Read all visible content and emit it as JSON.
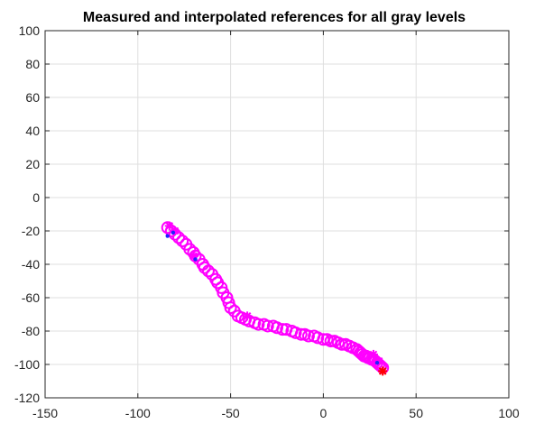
{
  "chart_data": {
    "type": "scatter",
    "title": "Measured and interpolated references for all gray levels",
    "xlabel": "",
    "ylabel": "",
    "xlim": [
      -150,
      100
    ],
    "ylim": [
      -120,
      100
    ],
    "xticks": [
      -150,
      -100,
      -50,
      0,
      50,
      100
    ],
    "yticks": [
      -120,
      -100,
      -80,
      -60,
      -40,
      -20,
      0,
      20,
      40,
      60,
      80,
      100
    ],
    "grid": true,
    "legend": "none",
    "colors": {
      "interpolated": "#ff00ff",
      "measured": "#ff00ff",
      "dark_marker": "#2020ff",
      "highlight": "#ff0000"
    },
    "series": [
      {
        "marker": "circle",
        "color": "#ff00ff",
        "x": [
          -84,
          -82,
          -80,
          -78,
          -76,
          -74,
          -72,
          -70,
          -69,
          -67,
          -65,
          -64,
          -62,
          -60,
          -58,
          -57,
          -55,
          -54,
          -52,
          -51,
          -50,
          -48,
          -46,
          -44,
          -42,
          -40,
          -37,
          -35,
          -32,
          -30,
          -27,
          -25,
          -22,
          -20,
          -17,
          -15,
          -12,
          -10,
          -8,
          -5,
          -3,
          0,
          2,
          4,
          6,
          8,
          10,
          12,
          14,
          16,
          18,
          19,
          20,
          21,
          22,
          23,
          24,
          25,
          26,
          27,
          28,
          29,
          30,
          31,
          32
        ],
        "y": [
          -18,
          -20,
          -22,
          -24,
          -26,
          -28,
          -31,
          -33,
          -35,
          -37,
          -40,
          -42,
          -44,
          -46,
          -49,
          -51,
          -54,
          -57,
          -60,
          -63,
          -66,
          -68,
          -71,
          -72,
          -73,
          -74,
          -75,
          -76,
          -76,
          -77,
          -77,
          -78,
          -79,
          -79,
          -80,
          -81,
          -82,
          -82,
          -83,
          -83,
          -84,
          -85,
          -85,
          -86,
          -86,
          -87,
          -88,
          -88,
          -89,
          -90,
          -91,
          -92,
          -93,
          -94,
          -95,
          -95,
          -96,
          -96,
          -97,
          -97,
          -98,
          -99,
          -100,
          -101,
          -102
        ]
      },
      {
        "marker": "star",
        "color": "#ff00ff",
        "x": [
          -83,
          -80,
          -70,
          -41,
          27,
          30
        ],
        "y": [
          -17,
          -20,
          -35,
          -71,
          -94,
          -98
        ]
      },
      {
        "marker": "dot",
        "color": "#2020ff",
        "x": [
          -84,
          -81,
          -69,
          29
        ],
        "y": [
          -23,
          -21,
          -37,
          -99
        ]
      },
      {
        "marker": "star",
        "color": "#ff0000",
        "x": [
          32
        ],
        "y": [
          -104
        ]
      }
    ]
  }
}
